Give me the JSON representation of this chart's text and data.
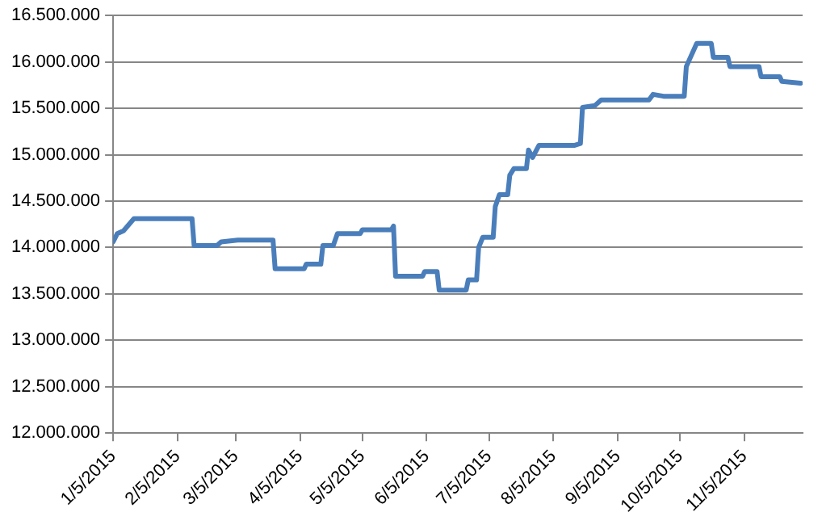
{
  "chart_data": {
    "type": "line",
    "color": "#4a7ebb",
    "grid": "y",
    "x": [
      "2015-01-05",
      "2015-01-07",
      "2015-01-10",
      "2015-01-15",
      "2015-02-12",
      "2015-02-13",
      "2015-02-24",
      "2015-02-26",
      "2015-03-06",
      "2015-03-23",
      "2015-03-24",
      "2015-04-07",
      "2015-04-08",
      "2015-04-15",
      "2015-04-16",
      "2015-04-21",
      "2015-04-23",
      "2015-05-04",
      "2015-05-05",
      "2015-05-19",
      "2015-05-20",
      "2015-05-21",
      "2015-06-03",
      "2015-06-04",
      "2015-06-10",
      "2015-06-11",
      "2015-06-24",
      "2015-06-25",
      "2015-06-29",
      "2015-06-30",
      "2015-07-02",
      "2015-07-07",
      "2015-07-08",
      "2015-07-10",
      "2015-07-14",
      "2015-07-15",
      "2015-07-17",
      "2015-07-23",
      "2015-07-24",
      "2015-07-26",
      "2015-07-29",
      "2015-08-15",
      "2015-08-18",
      "2015-08-19",
      "2015-08-25",
      "2015-08-28",
      "2015-09-20",
      "2015-09-22",
      "2015-09-27",
      "2015-10-07",
      "2015-10-08",
      "2015-10-13",
      "2015-10-20",
      "2015-10-21",
      "2015-10-28",
      "2015-10-29",
      "2015-11-12",
      "2015-11-13",
      "2015-11-22",
      "2015-11-23",
      "2015-12-02"
    ],
    "values": [
      14060000,
      14150000,
      14180000,
      14310000,
      14310000,
      14020000,
      14020000,
      14060000,
      14080000,
      14080000,
      13770000,
      13770000,
      13820000,
      13820000,
      14020000,
      14020000,
      14150000,
      14150000,
      14190000,
      14190000,
      14230000,
      13690000,
      13690000,
      13740000,
      13740000,
      13540000,
      13540000,
      13650000,
      13650000,
      14000000,
      14110000,
      14110000,
      14440000,
      14570000,
      14570000,
      14780000,
      14850000,
      14850000,
      15050000,
      14970000,
      15100000,
      15100000,
      15120000,
      15510000,
      15530000,
      15590000,
      15590000,
      15650000,
      15630000,
      15630000,
      15950000,
      16200000,
      16200000,
      16050000,
      16050000,
      15950000,
      15950000,
      15840000,
      15840000,
      15790000,
      15770000
    ],
    "xlim": [
      "2015-01-05",
      "2015-12-03"
    ],
    "xticks": [
      {
        "value": "2015-01-05",
        "label": "1/5/2015"
      },
      {
        "value": "2015-02-05",
        "label": "2/5/2015"
      },
      {
        "value": "2015-03-05",
        "label": "3/5/2015"
      },
      {
        "value": "2015-04-05",
        "label": "4/5/2015"
      },
      {
        "value": "2015-05-05",
        "label": "5/5/2015"
      },
      {
        "value": "2015-06-05",
        "label": "6/5/2015"
      },
      {
        "value": "2015-07-05",
        "label": "7/5/2015"
      },
      {
        "value": "2015-08-05",
        "label": "8/5/2015"
      },
      {
        "value": "2015-09-05",
        "label": "9/5/2015"
      },
      {
        "value": "2015-10-05",
        "label": "10/5/2015"
      },
      {
        "value": "2015-11-05",
        "label": "11/5/2015"
      }
    ],
    "ylim": [
      12000000,
      16500000
    ],
    "yticks": [
      {
        "value": 12000000,
        "label": "12.000.000"
      },
      {
        "value": 12500000,
        "label": "12.500.000"
      },
      {
        "value": 13000000,
        "label": "13.000.000"
      },
      {
        "value": 13500000,
        "label": "13.500.000"
      },
      {
        "value": 14000000,
        "label": "14.000.000"
      },
      {
        "value": 14500000,
        "label": "14.500.000"
      },
      {
        "value": 15000000,
        "label": "15.000.000"
      },
      {
        "value": 15500000,
        "label": "15.500.000"
      },
      {
        "value": 16000000,
        "label": "16.000.000"
      },
      {
        "value": 16500000,
        "label": "16.500.000"
      }
    ]
  }
}
